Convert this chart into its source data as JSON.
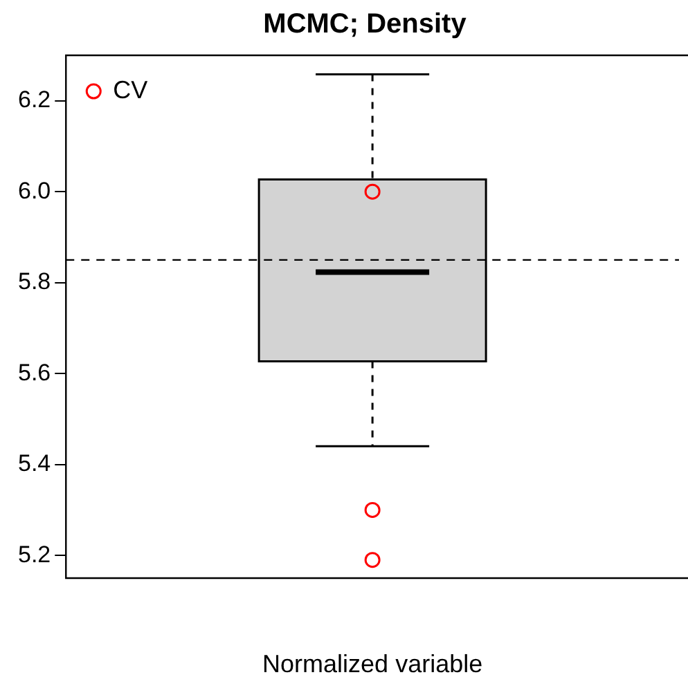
{
  "chart_data": {
    "type": "box",
    "title": "MCMC; Density",
    "xlabel": "Normalized variable",
    "categories": [
      null
    ],
    "boxes": [
      {
        "low": 5.44,
        "q1": 5.627,
        "median": 5.823,
        "q3": 6.027,
        "high": 6.258
      }
    ],
    "series": [
      {
        "type": "scatter",
        "name": "CV",
        "color": "#ff0000",
        "x": [
          null
        ],
        "values": [
          6.0
        ]
      },
      {
        "type": "scatter",
        "color": "#ff0000",
        "x": [
          null
        ],
        "values": [
          5.3
        ]
      },
      {
        "type": "scatter",
        "color": "#ff0000",
        "x": [
          null
        ],
        "values": [
          5.19
        ]
      }
    ],
    "ylim": [
      5.15,
      6.3
    ],
    "yticks": [
      5.2,
      5.4,
      5.6,
      5.8,
      {
        "value": 6,
        "label": "6.0"
      },
      6.2
    ],
    "ref_lines": [
      {
        "axis": "y",
        "value": 5.85,
        "line_style": "dashed",
        "color": "#000000"
      }
    ],
    "grid": false,
    "legend": "top left",
    "marker": "circle"
  }
}
